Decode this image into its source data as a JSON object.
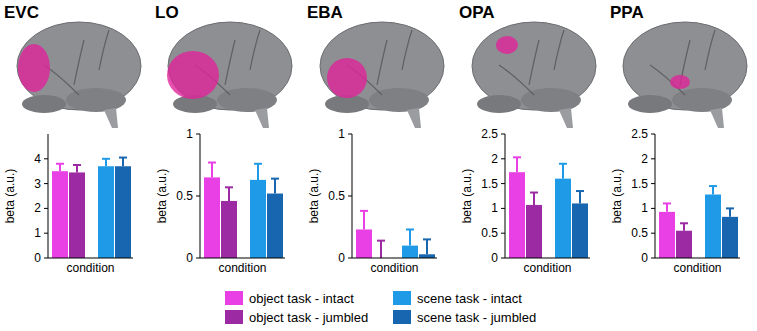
{
  "chart_data": [
    {
      "type": "bar",
      "title": "EVC",
      "x_label": "condition",
      "y_label": "beta (a.u.)",
      "ylim": [
        0,
        5
      ],
      "yticks": [
        0,
        1,
        2,
        3,
        4
      ],
      "grid": false,
      "legend": "bottom",
      "categories": [
        null
      ],
      "series": [
        {
          "name": "object task - intact",
          "color": "#e940e6",
          "values": [
            3.5
          ],
          "errors": [
            0.3
          ]
        },
        {
          "name": "object task - jumbled",
          "color": "#9c2aa3",
          "values": [
            3.45
          ],
          "errors": [
            0.3
          ]
        },
        {
          "name": "scene task - intact",
          "color": "#1f9ae6",
          "values": [
            3.7
          ],
          "errors": [
            0.3
          ]
        },
        {
          "name": "scene task - jumbled",
          "color": "#1966b0",
          "values": [
            3.7
          ],
          "errors": [
            0.35
          ]
        }
      ]
    },
    {
      "type": "bar",
      "title": "LO",
      "x_label": "condition",
      "y_label": "beta (a.u.)",
      "ylim": [
        0,
        1
      ],
      "yticks": [
        0,
        0.5,
        1
      ],
      "grid": false,
      "categories": [
        null
      ],
      "series": [
        {
          "color": "#e940e6",
          "values": [
            0.65
          ],
          "errors": [
            0.12
          ]
        },
        {
          "color": "#9c2aa3",
          "values": [
            0.46
          ],
          "errors": [
            0.11
          ]
        },
        {
          "color": "#1f9ae6",
          "values": [
            0.63
          ],
          "errors": [
            0.13
          ]
        },
        {
          "color": "#1966b0",
          "values": [
            0.52
          ],
          "errors": [
            0.12
          ]
        }
      ]
    },
    {
      "type": "bar",
      "title": "EBA",
      "x_label": "condition",
      "y_label": "beta (a.u.)",
      "ylim": [
        0,
        1
      ],
      "yticks": [
        0,
        0.5,
        1
      ],
      "grid": false,
      "categories": [
        null
      ],
      "series": [
        {
          "color": "#e940e6",
          "values": [
            0.23
          ],
          "errors": [
            0.15
          ]
        },
        {
          "color": "#9c2aa3",
          "values": [
            0.0
          ],
          "errors": [
            0.14
          ]
        },
        {
          "color": "#1f9ae6",
          "values": [
            0.1
          ],
          "errors": [
            0.13
          ]
        },
        {
          "color": "#1966b0",
          "values": [
            0.03
          ],
          "errors": [
            0.12
          ]
        }
      ]
    },
    {
      "type": "bar",
      "title": "OPA",
      "x_label": "condition",
      "y_label": "beta (a.u.)",
      "ylim": [
        0,
        2.5
      ],
      "yticks": [
        0,
        0.5,
        1,
        1.5,
        2,
        2.5
      ],
      "grid": false,
      "categories": [
        null
      ],
      "series": [
        {
          "color": "#e940e6",
          "values": [
            1.73
          ],
          "errors": [
            0.3
          ]
        },
        {
          "color": "#9c2aa3",
          "values": [
            1.07
          ],
          "errors": [
            0.25
          ]
        },
        {
          "color": "#1f9ae6",
          "values": [
            1.6
          ],
          "errors": [
            0.3
          ]
        },
        {
          "color": "#1966b0",
          "values": [
            1.1
          ],
          "errors": [
            0.25
          ]
        }
      ]
    },
    {
      "type": "bar",
      "title": "PPA",
      "x_label": "condition",
      "y_label": "beta (a.u.)",
      "ylim": [
        0,
        2.5
      ],
      "yticks": [
        0,
        0.5,
        1,
        1.5,
        2,
        2.5
      ],
      "grid": false,
      "categories": [
        null
      ],
      "series": [
        {
          "color": "#e940e6",
          "values": [
            0.93
          ],
          "errors": [
            0.17
          ]
        },
        {
          "color": "#9c2aa3",
          "values": [
            0.55
          ],
          "errors": [
            0.15
          ]
        },
        {
          "color": "#1f9ae6",
          "values": [
            1.28
          ],
          "errors": [
            0.17
          ]
        },
        {
          "color": "#1966b0",
          "values": [
            0.83
          ],
          "errors": [
            0.17
          ]
        }
      ]
    }
  ]
}
